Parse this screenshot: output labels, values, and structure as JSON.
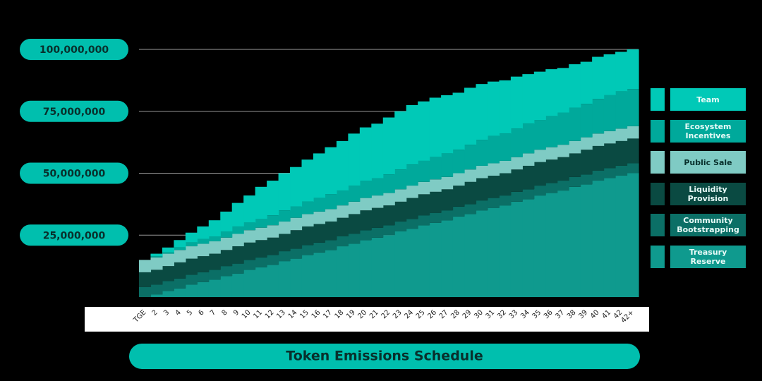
{
  "chart_data": {
    "type": "step_area",
    "stacked": true,
    "title": "Token Emissions Schedule",
    "categories": [
      "TGE",
      "2",
      "3",
      "4",
      "5",
      "6",
      "7",
      "8",
      "9",
      "10",
      "11",
      "12",
      "13",
      "14",
      "15",
      "16",
      "17",
      "18",
      "19",
      "20",
      "21",
      "22",
      "23",
      "24",
      "25",
      "26",
      "27",
      "28",
      "29",
      "30",
      "31",
      "32",
      "33",
      "34",
      "35",
      "36",
      "37",
      "38",
      "39",
      "40",
      "41",
      "42",
      "42+"
    ],
    "series": [
      {
        "name": "Team",
        "color": "#00c9b7",
        "values": [
          0,
          1000000,
          2000000,
          3000000,
          4000000,
          5000000,
          6500000,
          8000000,
          9500000,
          11000000,
          13000000,
          14000000,
          15000000,
          16000000,
          17000000,
          18000000,
          19000000,
          20000000,
          21000000,
          21500000,
          22000000,
          23000000,
          23500000,
          24000000,
          24000000,
          24000000,
          23500000,
          23000000,
          23000000,
          22500000,
          22000000,
          21500000,
          21000000,
          20000000,
          19500000,
          19000000,
          18000000,
          17500000,
          17000000,
          17000000,
          16500000,
          16000000,
          16000000
        ]
      },
      {
        "name": "Ecosystem Incentives",
        "color": "#00a99b",
        "values": [
          0,
          500000,
          500000,
          1000000,
          1500000,
          2000000,
          2000000,
          2500000,
          3000000,
          3000000,
          3500000,
          4000000,
          4500000,
          4500000,
          5000000,
          5500000,
          6000000,
          6000000,
          6500000,
          7000000,
          7000000,
          7500000,
          8000000,
          8500000,
          8500000,
          9000000,
          9500000,
          9500000,
          10000000,
          10500000,
          11000000,
          11000000,
          11500000,
          12000000,
          12000000,
          12500000,
          13000000,
          13500000,
          13500000,
          14000000,
          14500000,
          15000000,
          15000000
        ]
      },
      {
        "name": "Public Sale",
        "color": "#7fcbc4",
        "values": [
          5000000,
          5000000,
          5000000,
          5000000,
          5000000,
          5000000,
          5000000,
          5000000,
          5000000,
          5000000,
          5000000,
          5000000,
          5000000,
          5000000,
          5000000,
          5000000,
          5000000,
          5000000,
          5000000,
          5000000,
          5000000,
          5000000,
          5000000,
          5000000,
          5000000,
          5000000,
          5000000,
          5000000,
          5000000,
          5000000,
          5000000,
          5000000,
          5000000,
          5000000,
          5000000,
          5000000,
          5000000,
          5000000,
          5000000,
          5000000,
          5000000,
          5000000,
          5000000
        ]
      },
      {
        "name": "Liquidity Provision",
        "color": "#0a4a42",
        "values": [
          6000000,
          6000000,
          6000000,
          6500000,
          6500000,
          6500000,
          6500000,
          6500000,
          7000000,
          7000000,
          7000000,
          7000000,
          7000000,
          7500000,
          7500000,
          7500000,
          7500000,
          7500000,
          8000000,
          8000000,
          8000000,
          8000000,
          8000000,
          8500000,
          8500000,
          8500000,
          8500000,
          8500000,
          9000000,
          9000000,
          9000000,
          9000000,
          9000000,
          9500000,
          9500000,
          9500000,
          9500000,
          9500000,
          10000000,
          10000000,
          10000000,
          10000000,
          10000000
        ]
      },
      {
        "name": "Community Bootstrapping",
        "color": "#0b6f66",
        "values": [
          4000000,
          4000000,
          4000000,
          4000000,
          4000000,
          4000000,
          4000000,
          4000000,
          4000000,
          4000000,
          4000000,
          4000000,
          4000000,
          4000000,
          4000000,
          4000000,
          4000000,
          4000000,
          4000000,
          4000000,
          4000000,
          4000000,
          4000000,
          4000000,
          4000000,
          4000000,
          4000000,
          4000000,
          4000000,
          4000000,
          4000000,
          4000000,
          4000000,
          4000000,
          4000000,
          4000000,
          4000000,
          4000000,
          4000000,
          4000000,
          4000000,
          4000000,
          4000000
        ]
      },
      {
        "name": "Treasury Reserve",
        "color": "#0f9a8e",
        "values": [
          0,
          1000000,
          2500000,
          3500000,
          5000000,
          6000000,
          7000000,
          8500000,
          9500000,
          11000000,
          12000000,
          13000000,
          14500000,
          15500000,
          17000000,
          18000000,
          19000000,
          20500000,
          21500000,
          23000000,
          24000000,
          25000000,
          26500000,
          27500000,
          29000000,
          30000000,
          31000000,
          32500000,
          33500000,
          35000000,
          36000000,
          37000000,
          38500000,
          39500000,
          41000000,
          42000000,
          43000000,
          44500000,
          45500000,
          47000000,
          48000000,
          49000000,
          50000000
        ]
      }
    ],
    "ylim": [
      0,
      100000000
    ],
    "yticks": [
      {
        "value": 25000000,
        "label": "25,000,000"
      },
      {
        "value": 50000000,
        "label": "50,000,000"
      },
      {
        "value": 75000000,
        "label": "75,000,000"
      },
      {
        "value": 100000000,
        "label": "100,000,000"
      }
    ],
    "grid": true,
    "legend": "right"
  }
}
